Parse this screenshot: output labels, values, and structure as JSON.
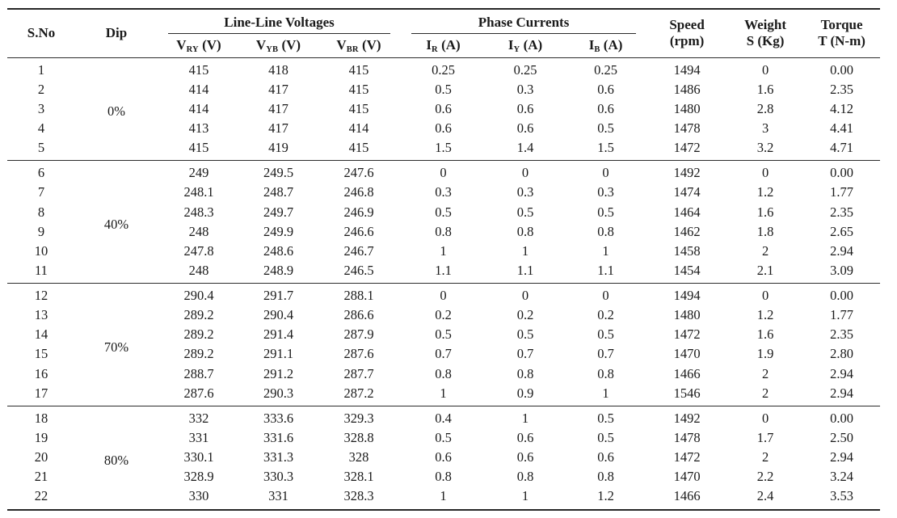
{
  "table": {
    "header": {
      "sno": "S.No",
      "dip": "Dip",
      "voltages_group": "Line-Line Voltages",
      "currents_group": "Phase Currents",
      "subcols": [
        {
          "base": "V",
          "sub": "RY",
          "unit": " (V)"
        },
        {
          "base": "V",
          "sub": "YB",
          "unit": " (V)"
        },
        {
          "base": "V",
          "sub": "BR",
          "unit": " (V)"
        },
        {
          "base": "I",
          "sub": "R",
          "unit": " (A)"
        },
        {
          "base": "I",
          "sub": "Y",
          "unit": " (A)"
        },
        {
          "base": "I",
          "sub": "B",
          "unit": " (A)"
        }
      ],
      "speed_line1": "Speed",
      "speed_line2": "(rpm)",
      "weight_line1": "Weight",
      "weight_line2": "S (Kg)",
      "torque_line1": "Torque",
      "torque_line2": "T (N-m)"
    },
    "groups": [
      {
        "dip": "0%",
        "rows": [
          [
            "1",
            "415",
            "418",
            "415",
            "0.25",
            "0.25",
            "0.25",
            "1494",
            "0",
            "0.00"
          ],
          [
            "2",
            "414",
            "417",
            "415",
            "0.5",
            "0.3",
            "0.6",
            "1486",
            "1.6",
            "2.35"
          ],
          [
            "3",
            "414",
            "417",
            "415",
            "0.6",
            "0.6",
            "0.6",
            "1480",
            "2.8",
            "4.12"
          ],
          [
            "4",
            "413",
            "417",
            "414",
            "0.6",
            "0.6",
            "0.5",
            "1478",
            "3",
            "4.41"
          ],
          [
            "5",
            "415",
            "419",
            "415",
            "1.5",
            "1.4",
            "1.5",
            "1472",
            "3.2",
            "4.71"
          ]
        ]
      },
      {
        "dip": "40%",
        "rows": [
          [
            "6",
            "249",
            "249.5",
            "247.6",
            "0",
            "0",
            "0",
            "1492",
            "0",
            "0.00"
          ],
          [
            "7",
            "248.1",
            "248.7",
            "246.8",
            "0.3",
            "0.3",
            "0.3",
            "1474",
            "1.2",
            "1.77"
          ],
          [
            "8",
            "248.3",
            "249.7",
            "246.9",
            "0.5",
            "0.5",
            "0.5",
            "1464",
            "1.6",
            "2.35"
          ],
          [
            "9",
            "248",
            "249.9",
            "246.6",
            "0.8",
            "0.8",
            "0.8",
            "1462",
            "1.8",
            "2.65"
          ],
          [
            "10",
            "247.8",
            "248.6",
            "246.7",
            "1",
            "1",
            "1",
            "1458",
            "2",
            "2.94"
          ],
          [
            "11",
            "248",
            "248.9",
            "246.5",
            "1.1",
            "1.1",
            "1.1",
            "1454",
            "2.1",
            "3.09"
          ]
        ]
      },
      {
        "dip": "70%",
        "rows": [
          [
            "12",
            "290.4",
            "291.7",
            "288.1",
            "0",
            "0",
            "0",
            "1494",
            "0",
            "0.00"
          ],
          [
            "13",
            "289.2",
            "290.4",
            "286.6",
            "0.2",
            "0.2",
            "0.2",
            "1480",
            "1.2",
            "1.77"
          ],
          [
            "14",
            "289.2",
            "291.4",
            "287.9",
            "0.5",
            "0.5",
            "0.5",
            "1472",
            "1.6",
            "2.35"
          ],
          [
            "15",
            "289.2",
            "291.1",
            "287.6",
            "0.7",
            "0.7",
            "0.7",
            "1470",
            "1.9",
            "2.80"
          ],
          [
            "16",
            "288.7",
            "291.2",
            "287.7",
            "0.8",
            "0.8",
            "0.8",
            "1466",
            "2",
            "2.94"
          ],
          [
            "17",
            "287.6",
            "290.3",
            "287.2",
            "1",
            "0.9",
            "1",
            "1546",
            "2",
            "2.94"
          ]
        ]
      },
      {
        "dip": "80%",
        "rows": [
          [
            "18",
            "332",
            "333.6",
            "329.3",
            "0.4",
            "1",
            "0.5",
            "1492",
            "0",
            "0.00"
          ],
          [
            "19",
            "331",
            "331.6",
            "328.8",
            "0.5",
            "0.6",
            "0.5",
            "1478",
            "1.7",
            "2.50"
          ],
          [
            "20",
            "330.1",
            "331.3",
            "328",
            "0.6",
            "0.6",
            "0.6",
            "1472",
            "2",
            "2.94"
          ],
          [
            "21",
            "328.9",
            "330.3",
            "328.1",
            "0.8",
            "0.8",
            "0.8",
            "1470",
            "2.2",
            "3.24"
          ],
          [
            "22",
            "330",
            "331",
            "328.3",
            "1",
            "1",
            "1.2",
            "1466",
            "2.4",
            "3.53"
          ]
        ]
      }
    ]
  }
}
